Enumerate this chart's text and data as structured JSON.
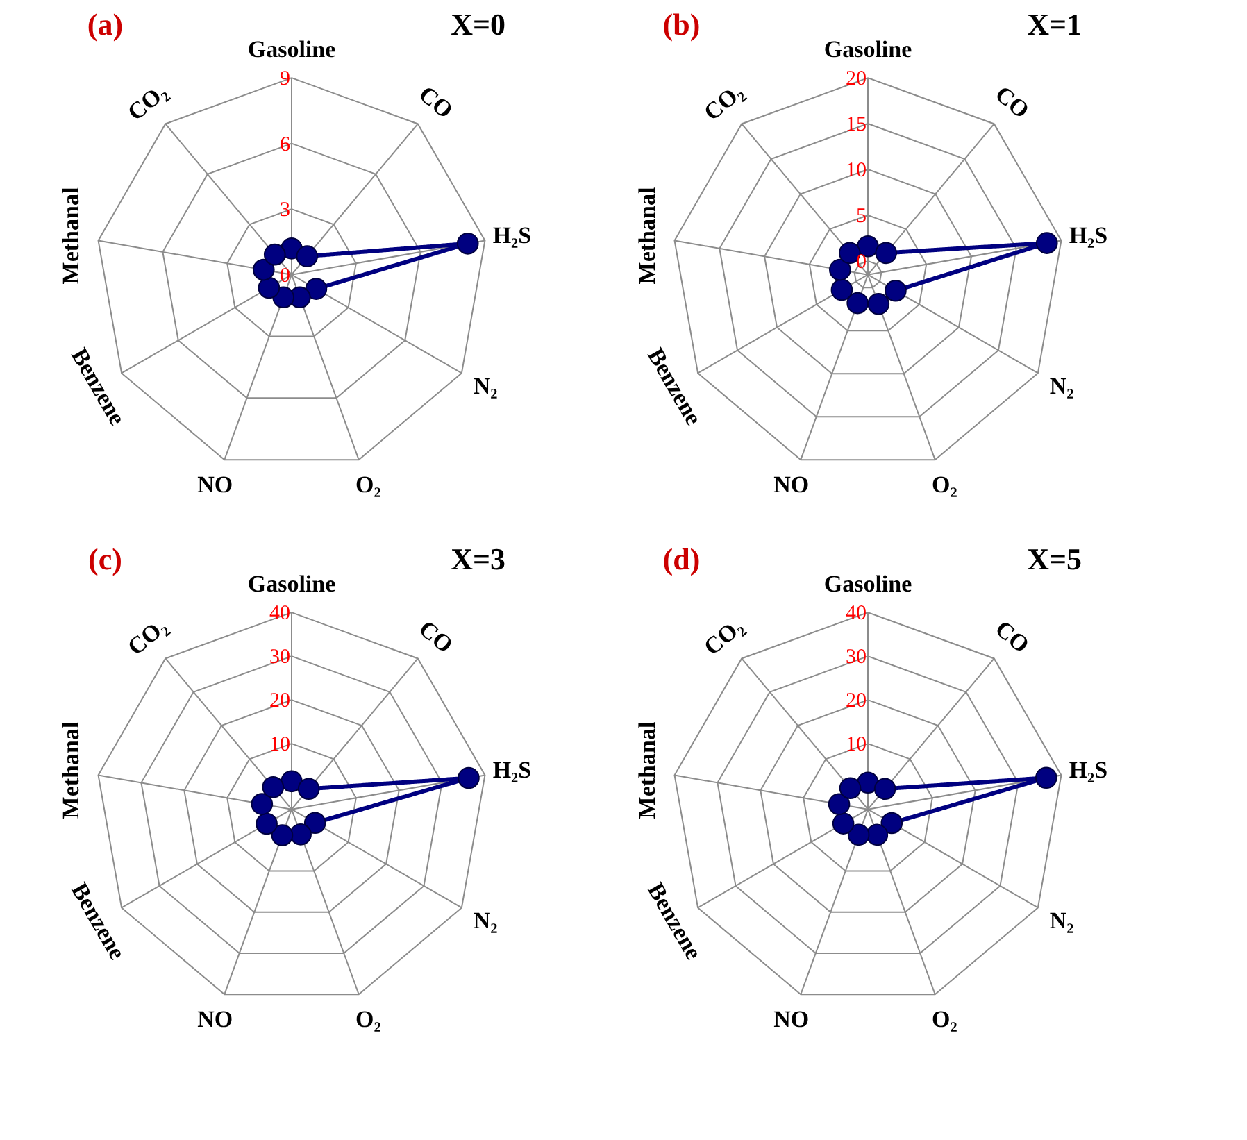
{
  "chart_data": [
    {
      "type": "radar",
      "title": "(a)",
      "subtitle": "X=0",
      "categories": [
        "Gasoline",
        "CO",
        "H₂S",
        "N₂",
        "O₂",
        "NO",
        "Benzene",
        "Methanal",
        "CO₂"
      ],
      "ylim": [
        0,
        9
      ],
      "yticks": [
        0,
        3,
        6,
        9
      ],
      "grid": true,
      "marker": "circle",
      "line_style": "solid",
      "series": [
        {
          "color": "#000080",
          "values": [
            1.2,
            1.1,
            8.2,
            1.3,
            1.1,
            1.1,
            1.2,
            1.3,
            1.2
          ]
        }
      ]
    },
    {
      "type": "radar",
      "title": "(b)",
      "subtitle": "X=1",
      "categories": [
        "Gasoline",
        "CO",
        "H₂S",
        "N₂",
        "O₂",
        "NO",
        "Benzene",
        "Methanal",
        "CO₂"
      ],
      "ylim": [
        -1.5,
        20
      ],
      "yticks": [
        0,
        5,
        10,
        15,
        20
      ],
      "grid": true,
      "marker": "circle",
      "line_style": "solid",
      "series": [
        {
          "color": "#000080",
          "values": [
            1.6,
            1.6,
            18.4,
            2.0,
            1.9,
            1.8,
            1.8,
            1.6,
            1.6
          ]
        }
      ]
    },
    {
      "type": "radar",
      "title": "(c)",
      "subtitle": "X=3",
      "categories": [
        "Gasoline",
        "CO",
        "H₂S",
        "N₂",
        "O₂",
        "NO",
        "Benzene",
        "Methanal",
        "CO₂"
      ],
      "ylim": [
        -5,
        40
      ],
      "yticks": [
        10,
        20,
        30,
        40
      ],
      "grid": true,
      "marker": "circle",
      "line_style": "solid",
      "series": [
        {
          "color": "#000080",
          "values": [
            1.4,
            1.1,
            36.2,
            1.2,
            1.1,
            1.3,
            1.6,
            1.9,
            1.6
          ]
        }
      ]
    },
    {
      "type": "radar",
      "title": "(d)",
      "subtitle": "X=5",
      "categories": [
        "Gasoline",
        "CO",
        "H₂S",
        "N₂",
        "O₂",
        "NO",
        "Benzene",
        "Methanal",
        "CO₂"
      ],
      "ylim": [
        -5,
        40
      ],
      "yticks": [
        10,
        20,
        30,
        40
      ],
      "grid": true,
      "marker": "circle",
      "line_style": "solid",
      "series": [
        {
          "color": "#000080",
          "values": [
            1.1,
            1.1,
            36.5,
            1.3,
            1.2,
            1.2,
            1.5,
            1.7,
            1.3
          ]
        }
      ]
    }
  ]
}
